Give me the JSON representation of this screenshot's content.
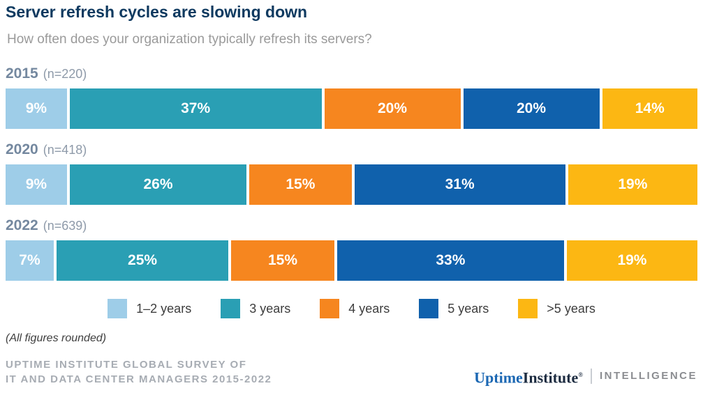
{
  "header": {
    "title": "Server refresh cycles are slowing down",
    "subtitle": "How often does your organization typically refresh its servers?"
  },
  "chart_data": {
    "type": "bar",
    "variant": "horizontal-stacked-100pct",
    "value_suffix": "%",
    "xlim": [
      0,
      100
    ],
    "legend_position": "bottom",
    "categories": [
      "1–2 years",
      "3 years",
      "4 years",
      "5 years",
      ">5 years"
    ],
    "colors": [
      "#9ecde8",
      "#2a9fb4",
      "#f6861f",
      "#1061ac",
      "#fcb713"
    ],
    "rows": [
      {
        "year": "2015",
        "sample": "(n=220)",
        "values": [
          9,
          37,
          20,
          20,
          14
        ]
      },
      {
        "year": "2020",
        "sample": "(n=418)",
        "values": [
          9,
          26,
          15,
          31,
          19
        ]
      },
      {
        "year": "2022",
        "sample": "(n=639)",
        "values": [
          7,
          25,
          15,
          33,
          19
        ]
      }
    ]
  },
  "footnote": "(All figures rounded)",
  "source": {
    "line1": "UPTIME INSTITUTE GLOBAL SURVEY OF",
    "line2": "IT AND DATA CENTER MANAGERS 2015-2022"
  },
  "logo": {
    "brand_blue": "Uptime",
    "brand_dark": "Institute",
    "registered_mark": "®",
    "unit": "INTELLIGENCE"
  }
}
